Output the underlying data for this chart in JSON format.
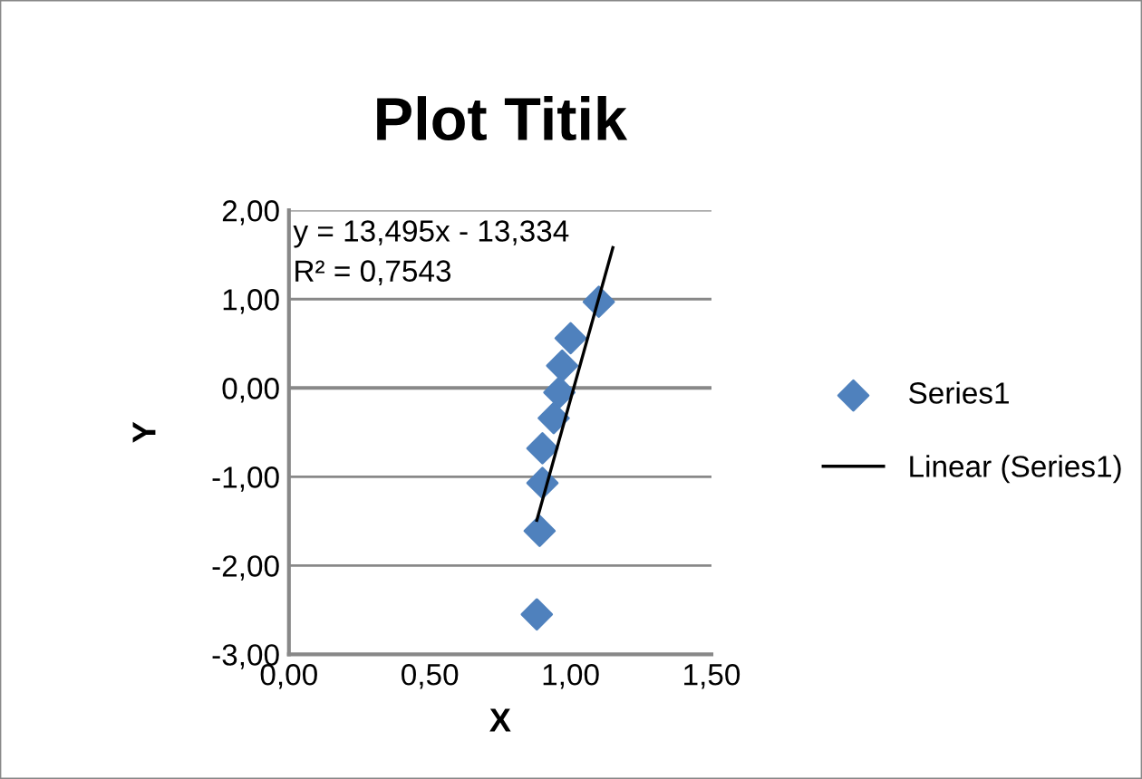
{
  "chart_data": {
    "type": "scatter",
    "title": "Plot Titik",
    "xlabel": "X",
    "ylabel": "Y",
    "xlim": [
      0,
      1.5
    ],
    "ylim": [
      -3,
      2
    ],
    "xticks": [
      {
        "value": 0,
        "label": "0,00"
      },
      {
        "value": 0.5,
        "label": "0,50"
      },
      {
        "value": 1,
        "label": "1,00"
      },
      {
        "value": 1.5,
        "label": "1,50"
      }
    ],
    "yticks": [
      {
        "value": -3,
        "label": "-3,00"
      },
      {
        "value": -2,
        "label": "-2,00"
      },
      {
        "value": -1,
        "label": "-1,00"
      },
      {
        "value": 0,
        "label": "0,00"
      },
      {
        "value": 1,
        "label": "1,00"
      },
      {
        "value": 2,
        "label": "2,00"
      }
    ],
    "grid": "y",
    "legend": "right",
    "marker": "diamond",
    "series": [
      {
        "name": "Series1",
        "color": "#4f81bd",
        "x": [
          1.1,
          1.0,
          0.97,
          0.96,
          0.94,
          0.9,
          0.9,
          0.89,
          0.88
        ],
        "values": [
          0.97,
          0.56,
          0.25,
          -0.05,
          -0.34,
          -0.68,
          -1.07,
          -1.61,
          -2.55
        ]
      },
      {
        "name": "Linear (Series1)",
        "type": "line",
        "color": "#000000",
        "marker": "none",
        "x": [
          0.88,
          1.15
        ],
        "values": [
          -1.49,
          1.58
        ]
      }
    ],
    "annotations": [
      "y = 13,495x - 13,334",
      "R² = 0,7543"
    ]
  }
}
